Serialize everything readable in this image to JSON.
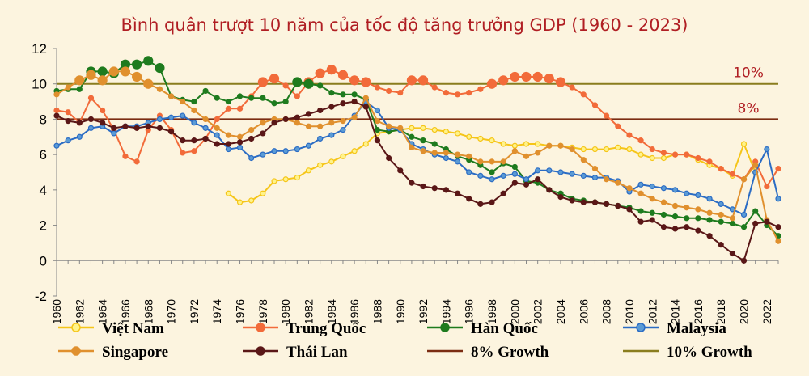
{
  "chart_data": {
    "type": "line",
    "title": "Bình quân trượt 10 năm của tốc độ tăng trưởng GDP (1960 - 2023)",
    "xlabel": "",
    "ylabel": "",
    "xlim": [
      1960,
      2023
    ],
    "ylim": [
      -2,
      12
    ],
    "yticks": [
      -2,
      0,
      2,
      4,
      6,
      8,
      10,
      12
    ],
    "xticks": [
      1960,
      1962,
      1964,
      1966,
      1968,
      1970,
      1972,
      1974,
      1976,
      1978,
      1980,
      1982,
      1984,
      1986,
      1988,
      1990,
      1992,
      1994,
      1996,
      1998,
      2000,
      2002,
      2004,
      2006,
      2008,
      2010,
      2012,
      2014,
      2016,
      2018,
      2020,
      2022
    ],
    "grid": false,
    "legend_position": "bottom",
    "reference_lines": [
      {
        "name": "8% Growth",
        "value": 8,
        "label": "8%",
        "color": "#7b2c12"
      },
      {
        "name": "10% Growth",
        "value": 10,
        "label": "10%",
        "color": "#8a7d1e"
      }
    ],
    "highlight_threshold": 10,
    "series": [
      {
        "name": "Việt Nam",
        "color": "#f5c518",
        "marker_fill": "#fff38a",
        "marker_stroke": "#f5c518",
        "x_start": 1975,
        "values": [
          3.8,
          3.3,
          3.4,
          3.8,
          4.5,
          4.6,
          4.7,
          5.1,
          5.4,
          5.6,
          5.9,
          6.2,
          6.6,
          7.2,
          7.3,
          7.4,
          7.5,
          7.5,
          7.4,
          7.3,
          7.2,
          7.0,
          6.9,
          6.8,
          6.6,
          6.5,
          6.6,
          6.6,
          6.5,
          6.5,
          6.4,
          6.3,
          6.3,
          6.3,
          6.4,
          6.3,
          6.0,
          5.8,
          5.8,
          6.0,
          6.0,
          5.7,
          5.4,
          5.2,
          4.8,
          6.6,
          5.0
        ]
      },
      {
        "name": "Trung Quốc",
        "color": "#f26b3a",
        "marker_fill": "#f26b3a",
        "marker_stroke": "#f26b3a",
        "x_start": 1960,
        "values": [
          8.5,
          8.4,
          7.8,
          9.2,
          8.5,
          7.4,
          5.9,
          5.6,
          7.4,
          8.2,
          7.4,
          6.1,
          6.2,
          6.9,
          8.0,
          8.6,
          8.6,
          9.3,
          10.1,
          10.3,
          9.9,
          9.3,
          10.1,
          10.6,
          10.8,
          10.5,
          10.2,
          10.1,
          9.8,
          9.6,
          9.5,
          10.2,
          10.2,
          9.8,
          9.5,
          9.4,
          9.5,
          9.7,
          10.0,
          10.2,
          10.4,
          10.4,
          10.4,
          10.3,
          10.1,
          9.8,
          9.4,
          8.8,
          8.2,
          7.6,
          7.1,
          6.8,
          6.3,
          6.1,
          6.0,
          6.0,
          5.8,
          5.6,
          5.2,
          4.9,
          4.6,
          5.6,
          4.2,
          5.2
        ]
      },
      {
        "name": "Hàn Quốc",
        "color": "#1e7b1e",
        "marker_fill": "#1e7b1e",
        "marker_stroke": "#1e7b1e",
        "x_start": 1960,
        "values": [
          9.6,
          9.7,
          9.7,
          10.7,
          10.7,
          10.6,
          11.1,
          11.1,
          11.3,
          10.9,
          9.3,
          9.1,
          9.0,
          9.6,
          9.2,
          9.0,
          9.3,
          9.2,
          9.2,
          8.9,
          9.0,
          10.1,
          10.0,
          9.9,
          9.5,
          9.4,
          9.4,
          9.1,
          7.4,
          7.3,
          7.4,
          7.0,
          6.8,
          6.6,
          6.3,
          5.9,
          5.7,
          5.4,
          5.0,
          5.5,
          5.3,
          4.5,
          4.4,
          4.0,
          3.8,
          3.5,
          3.4,
          3.3,
          3.2,
          3.1,
          3.0,
          2.8,
          2.7,
          2.6,
          2.5,
          2.4,
          2.4,
          2.3,
          2.2,
          2.1,
          1.9,
          2.8,
          2.0,
          1.4
        ]
      },
      {
        "name": "Malaysia",
        "color": "#2b6cc4",
        "marker_fill": "#5b9bd5",
        "marker_stroke": "#2b6cc4",
        "x_start": 1960,
        "values": [
          6.5,
          6.8,
          7.0,
          7.5,
          7.6,
          7.2,
          7.6,
          7.6,
          7.8,
          8.0,
          8.1,
          8.2,
          7.8,
          7.5,
          7.1,
          6.3,
          6.4,
          5.8,
          6.0,
          6.2,
          6.2,
          6.3,
          6.5,
          6.9,
          7.1,
          7.4,
          8.2,
          9.0,
          8.5,
          7.5,
          7.4,
          6.6,
          6.3,
          6.0,
          5.8,
          5.6,
          5.0,
          4.8,
          4.6,
          4.8,
          4.9,
          4.6,
          5.1,
          5.1,
          5.0,
          4.9,
          4.8,
          4.7,
          4.7,
          4.5,
          3.9,
          4.3,
          4.2,
          4.1,
          4.0,
          3.8,
          3.7,
          3.5,
          3.2,
          2.9,
          2.6,
          5.0,
          6.3,
          3.5
        ]
      },
      {
        "name": "Singapore",
        "color": "#e0902e",
        "marker_fill": "#e0902e",
        "marker_stroke": "#e0902e",
        "x_start": 1960,
        "values": [
          9.4,
          9.8,
          10.2,
          10.5,
          10.2,
          10.7,
          10.7,
          10.4,
          10.0,
          9.7,
          9.3,
          9.0,
          8.5,
          8.0,
          7.5,
          7.1,
          7.0,
          7.4,
          7.8,
          8.0,
          8.0,
          7.8,
          7.6,
          7.6,
          7.8,
          7.9,
          8.1,
          9.2,
          7.9,
          7.6,
          7.5,
          6.4,
          6.2,
          6.1,
          6.1,
          6.0,
          5.9,
          5.6,
          5.6,
          5.6,
          6.2,
          5.9,
          6.1,
          6.5,
          6.5,
          6.3,
          5.7,
          5.2,
          4.6,
          4.4,
          4.1,
          3.8,
          3.5,
          3.3,
          3.1,
          3.0,
          2.9,
          2.7,
          2.6,
          2.4,
          4.6,
          5.4,
          2.3,
          1.1
        ]
      },
      {
        "name": "Thái Lan",
        "color": "#5a1717",
        "marker_fill": "#5a1717",
        "marker_stroke": "#5a1717",
        "x_start": 1960,
        "values": [
          8.2,
          7.9,
          7.8,
          8.0,
          7.8,
          7.5,
          7.6,
          7.5,
          7.6,
          7.5,
          7.3,
          6.8,
          6.8,
          6.9,
          6.6,
          6.6,
          6.7,
          6.9,
          7.2,
          7.8,
          8.0,
          8.1,
          8.3,
          8.5,
          8.7,
          8.9,
          9.0,
          8.7,
          6.8,
          5.8,
          5.1,
          4.4,
          4.2,
          4.1,
          4.0,
          3.8,
          3.5,
          3.2,
          3.3,
          3.8,
          4.4,
          4.3,
          4.6,
          4.0,
          3.6,
          3.4,
          3.3,
          3.3,
          3.2,
          3.1,
          2.9,
          2.2,
          2.3,
          1.9,
          1.8,
          1.9,
          1.7,
          1.4,
          0.9,
          0.4,
          0.0,
          2.1,
          2.2,
          1.9
        ]
      }
    ],
    "legend": [
      {
        "name": "Việt Nam",
        "kind": "series",
        "series_index": 0
      },
      {
        "name": "Trung Quốc",
        "kind": "series",
        "series_index": 1
      },
      {
        "name": "Hàn Quốc",
        "kind": "series",
        "series_index": 2
      },
      {
        "name": "Malaysia",
        "kind": "series",
        "series_index": 3
      },
      {
        "name": "Singapore",
        "kind": "series",
        "series_index": 4
      },
      {
        "name": "Thái Lan",
        "kind": "series",
        "series_index": 5
      },
      {
        "name": "8% Growth",
        "kind": "reference",
        "ref_index": 0
      },
      {
        "name": "10% Growth",
        "kind": "reference",
        "ref_index": 1
      }
    ]
  }
}
